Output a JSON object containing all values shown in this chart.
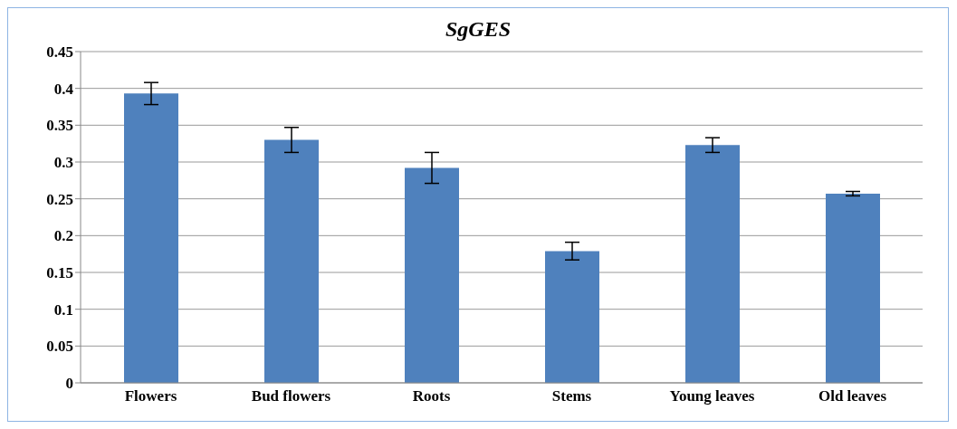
{
  "chart_data": {
    "type": "bar",
    "title": "SgGES",
    "categories": [
      "Flowers",
      "Bud flowers",
      "Roots",
      "Stems",
      "Young leaves",
      "Old leaves"
    ],
    "values": [
      0.393,
      0.33,
      0.292,
      0.179,
      0.323,
      0.257
    ],
    "errors": [
      0.015,
      0.017,
      0.021,
      0.012,
      0.01,
      0.003
    ],
    "color": "#4f81bd",
    "ylim": [
      0,
      0.45
    ],
    "yticks": [
      0,
      0.05,
      0.1,
      0.15,
      0.2,
      0.25,
      0.3,
      0.35,
      0.4,
      0.45
    ],
    "grid": "y",
    "legend": false
  }
}
